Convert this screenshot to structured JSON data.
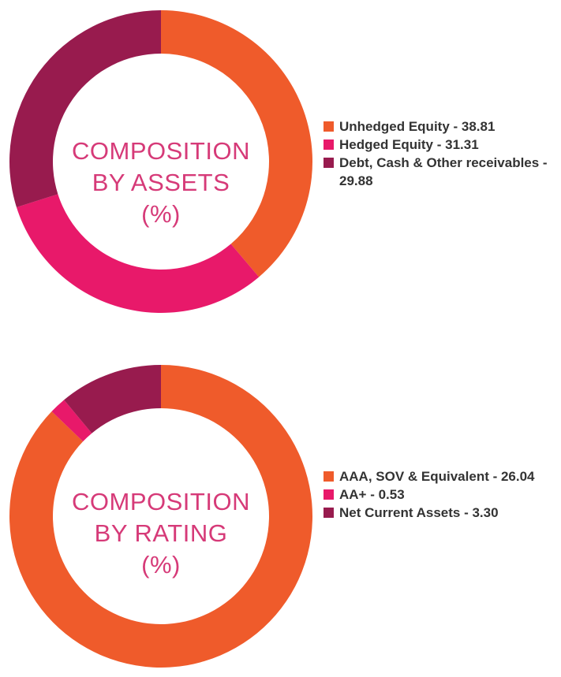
{
  "chart_data": [
    {
      "type": "pie",
      "donut": true,
      "center_title": "COMPOSITION\nBY ASSETS\n(%)",
      "legend_position": "right",
      "series": [
        {
          "name": "Unhedged Equity",
          "value": 38.81,
          "label": "Unhedged Equity - 38.81",
          "color": "#ef5b2b"
        },
        {
          "name": "Hedged Equity",
          "value": 31.31,
          "label": "Hedged Equity - 31.31",
          "color": "#e8196a"
        },
        {
          "name": "Debt, Cash & Other receivables",
          "value": 29.88,
          "label": "Debt, Cash & Other receivables - 29.88",
          "color": "#981b4e"
        }
      ]
    },
    {
      "type": "pie",
      "donut": true,
      "center_title": "COMPOSITION\nBY RATING\n(%)",
      "legend_position": "right",
      "series": [
        {
          "name": "AAA, SOV & Equivalent",
          "value": 26.04,
          "label": "AAA, SOV & Equivalent - 26.04",
          "color": "#ef5b2b"
        },
        {
          "name": "AA+",
          "value": 0.53,
          "label": "AA+ - 0.53",
          "color": "#e8196a"
        },
        {
          "name": "Net Current Assets",
          "value": 3.3,
          "label": "Net Current Assets - 3.30",
          "color": "#981b4e"
        }
      ]
    }
  ]
}
